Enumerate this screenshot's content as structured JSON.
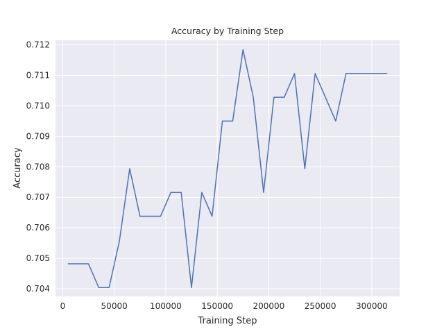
{
  "chart_data": {
    "type": "line",
    "title": "Accuracy by Training Step",
    "xlabel": "Training Step",
    "ylabel": "Accuracy",
    "xlim": [
      -7000,
      327000
    ],
    "ylim": [
      0.70375,
      0.71215
    ],
    "grid": true,
    "legend": "none",
    "x_ticks": [
      0,
      50000,
      100000,
      150000,
      200000,
      250000,
      300000
    ],
    "x_tick_labels": [
      "0",
      "50000",
      "100000",
      "150000",
      "200000",
      "250000",
      "300000"
    ],
    "y_ticks": [
      0.704,
      0.705,
      0.706,
      0.707,
      0.708,
      0.709,
      0.71,
      0.711,
      0.712
    ],
    "y_tick_labels": [
      "0.704",
      "0.705",
      "0.706",
      "0.707",
      "0.708",
      "0.709",
      "0.710",
      "0.711",
      "0.712"
    ],
    "series": [
      {
        "x": [
          5000,
          15000,
          25000,
          35000,
          45000,
          55000,
          65000,
          75000,
          85000,
          95000,
          105000,
          115000,
          125000,
          135000,
          145000,
          155000,
          165000,
          175000,
          185000,
          195000,
          205000,
          215000,
          225000,
          235000,
          245000,
          255000,
          265000,
          275000,
          285000,
          295000,
          305000,
          315000
        ],
        "values": [
          0.70482,
          0.70482,
          0.70482,
          0.70404,
          0.70404,
          0.70556,
          0.70794,
          0.70638,
          0.70638,
          0.70638,
          0.70716,
          0.70716,
          0.70404,
          0.70716,
          0.70638,
          0.7095,
          0.7095,
          0.71184,
          0.71028,
          0.70716,
          0.71028,
          0.71028,
          0.71106,
          0.70794,
          0.71106,
          0.71028,
          0.7095,
          0.71106,
          0.71106,
          0.71106,
          0.71106,
          0.71106
        ],
        "color": "#4c72b0"
      }
    ]
  },
  "colors": {
    "plot_background": "#eaeaf2",
    "grid": "#ffffff",
    "line": "#4c72b0",
    "text": "#262626"
  }
}
